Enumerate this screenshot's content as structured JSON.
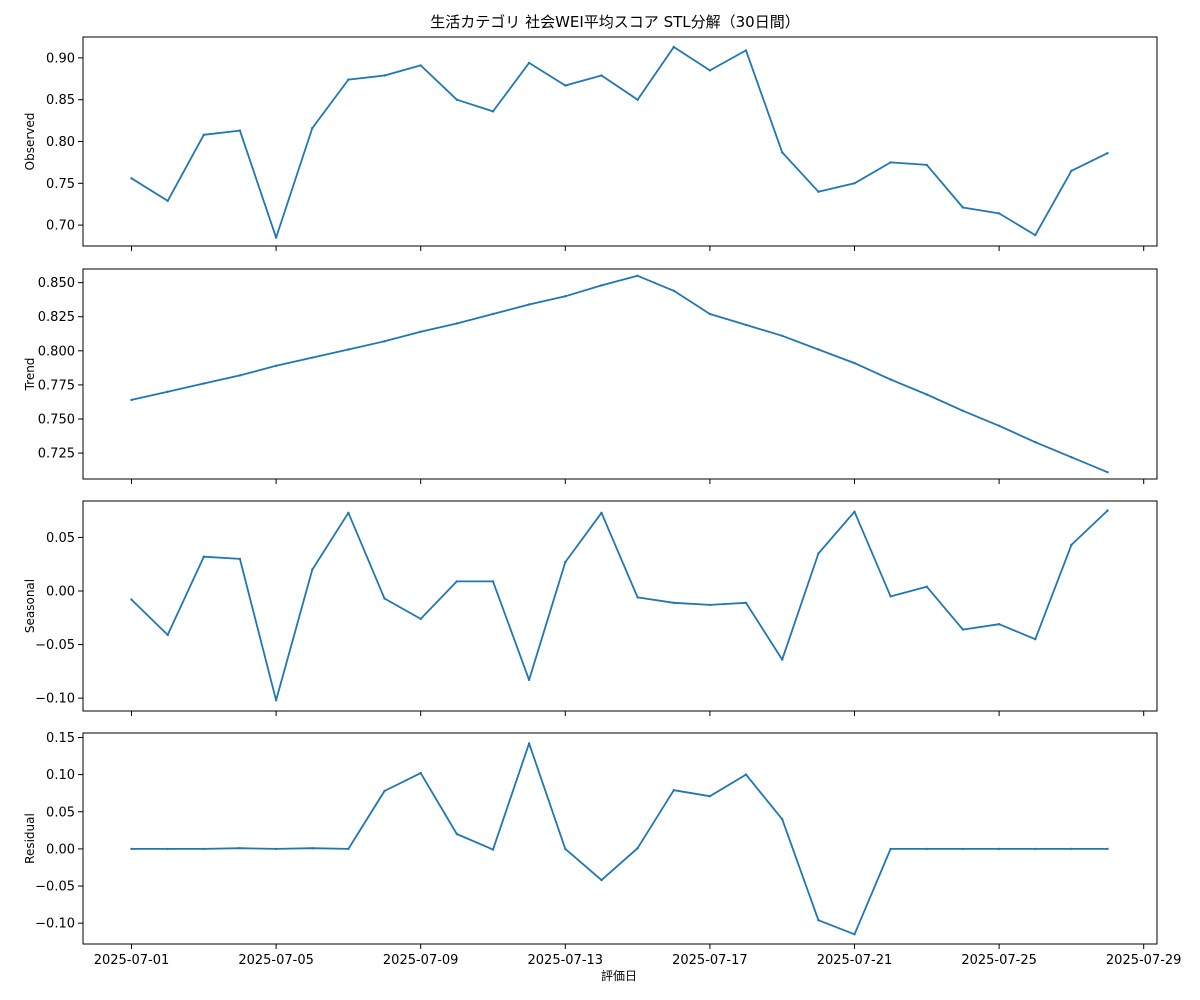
{
  "title": "生活カテゴリ 社会WEI平均スコア STL分解（30日間）",
  "xlabel": "評価日",
  "x_tick_labels": [
    "2025-07-01",
    "2025-07-05",
    "2025-07-09",
    "2025-07-13",
    "2025-07-17",
    "2025-07-21",
    "2025-07-25",
    "2025-07-29"
  ],
  "line_color": "#1f77b4",
  "chart_data": [
    {
      "type": "line",
      "ylabel": "Observed",
      "x": [
        "2025-07-01",
        "2025-07-02",
        "2025-07-03",
        "2025-07-04",
        "2025-07-05",
        "2025-07-06",
        "2025-07-07",
        "2025-07-08",
        "2025-07-09",
        "2025-07-10",
        "2025-07-11",
        "2025-07-12",
        "2025-07-13",
        "2025-07-14",
        "2025-07-15",
        "2025-07-16",
        "2025-07-17",
        "2025-07-18",
        "2025-07-19",
        "2025-07-20",
        "2025-07-21",
        "2025-07-22",
        "2025-07-23",
        "2025-07-24",
        "2025-07-25",
        "2025-07-26",
        "2025-07-27",
        "2025-07-28"
      ],
      "values": [
        0.756,
        0.729,
        0.808,
        0.813,
        0.685,
        0.816,
        0.874,
        0.879,
        0.891,
        0.85,
        0.836,
        0.894,
        0.867,
        0.879,
        0.85,
        0.913,
        0.885,
        0.909,
        0.787,
        0.74,
        0.75,
        0.775,
        0.772,
        0.721,
        0.714,
        0.688,
        0.765,
        0.786
      ],
      "ylim": [
        0.675,
        0.925
      ],
      "yticks": [
        0.7,
        0.75,
        0.8,
        0.85,
        0.9
      ],
      "ytick_labels": [
        "0.70",
        "0.75",
        "0.80",
        "0.85",
        "0.90"
      ]
    },
    {
      "type": "line",
      "ylabel": "Trend",
      "x": [
        "2025-07-01",
        "2025-07-02",
        "2025-07-03",
        "2025-07-04",
        "2025-07-05",
        "2025-07-06",
        "2025-07-07",
        "2025-07-08",
        "2025-07-09",
        "2025-07-10",
        "2025-07-11",
        "2025-07-12",
        "2025-07-13",
        "2025-07-14",
        "2025-07-15",
        "2025-07-16",
        "2025-07-17",
        "2025-07-18",
        "2025-07-19",
        "2025-07-20",
        "2025-07-21",
        "2025-07-22",
        "2025-07-23",
        "2025-07-24",
        "2025-07-25",
        "2025-07-26",
        "2025-07-27",
        "2025-07-28"
      ],
      "values": [
        0.764,
        0.77,
        0.776,
        0.782,
        0.789,
        0.795,
        0.801,
        0.807,
        0.814,
        0.82,
        0.827,
        0.834,
        0.84,
        0.848,
        0.855,
        0.844,
        0.827,
        0.819,
        0.811,
        0.801,
        0.791,
        0.779,
        0.768,
        0.756,
        0.745,
        0.733,
        0.722,
        0.711
      ],
      "ylim": [
        0.706,
        0.86
      ],
      "yticks": [
        0.725,
        0.75,
        0.775,
        0.8,
        0.825,
        0.85
      ],
      "ytick_labels": [
        "0.725",
        "0.750",
        "0.775",
        "0.800",
        "0.825",
        "0.850"
      ]
    },
    {
      "type": "line",
      "ylabel": "Seasonal",
      "x": [
        "2025-07-01",
        "2025-07-02",
        "2025-07-03",
        "2025-07-04",
        "2025-07-05",
        "2025-07-06",
        "2025-07-07",
        "2025-07-08",
        "2025-07-09",
        "2025-07-10",
        "2025-07-11",
        "2025-07-12",
        "2025-07-13",
        "2025-07-14",
        "2025-07-15",
        "2025-07-16",
        "2025-07-17",
        "2025-07-18",
        "2025-07-19",
        "2025-07-20",
        "2025-07-21",
        "2025-07-22",
        "2025-07-23",
        "2025-07-24",
        "2025-07-25",
        "2025-07-26",
        "2025-07-27",
        "2025-07-28"
      ],
      "values": [
        -0.008,
        -0.041,
        0.032,
        0.03,
        -0.102,
        0.02,
        0.073,
        -0.007,
        -0.026,
        0.009,
        0.009,
        -0.083,
        0.027,
        0.073,
        -0.006,
        -0.011,
        -0.013,
        -0.011,
        -0.064,
        0.035,
        0.074,
        -0.005,
        0.004,
        -0.036,
        -0.031,
        -0.045,
        0.043,
        0.075
      ],
      "ylim": [
        -0.112,
        0.084
      ],
      "yticks": [
        -0.1,
        -0.05,
        0.0,
        0.05
      ],
      "ytick_labels": [
        "−0.10",
        "−0.05",
        "0.00",
        "0.05"
      ]
    },
    {
      "type": "line",
      "ylabel": "Residual",
      "x": [
        "2025-07-01",
        "2025-07-02",
        "2025-07-03",
        "2025-07-04",
        "2025-07-05",
        "2025-07-06",
        "2025-07-07",
        "2025-07-08",
        "2025-07-09",
        "2025-07-10",
        "2025-07-11",
        "2025-07-12",
        "2025-07-13",
        "2025-07-14",
        "2025-07-15",
        "2025-07-16",
        "2025-07-17",
        "2025-07-18",
        "2025-07-19",
        "2025-07-20",
        "2025-07-21",
        "2025-07-22",
        "2025-07-23",
        "2025-07-24",
        "2025-07-25",
        "2025-07-26",
        "2025-07-27",
        "2025-07-28"
      ],
      "values": [
        0.0,
        0.0,
        0.0,
        0.001,
        0.0,
        0.001,
        0.0,
        0.078,
        0.102,
        0.02,
        -0.001,
        0.142,
        0.0,
        -0.042,
        0.001,
        0.079,
        0.071,
        0.1,
        0.04,
        -0.096,
        -0.115,
        0.0,
        0.0,
        0.0,
        0.0,
        0.0,
        0.0,
        0.0
      ],
      "ylim": [
        -0.128,
        0.156
      ],
      "yticks": [
        -0.1,
        -0.05,
        0.0,
        0.05,
        0.1,
        0.15
      ],
      "ytick_labels": [
        "−0.10",
        "−0.05",
        "0.00",
        "0.05",
        "0.10",
        "0.15"
      ]
    }
  ]
}
